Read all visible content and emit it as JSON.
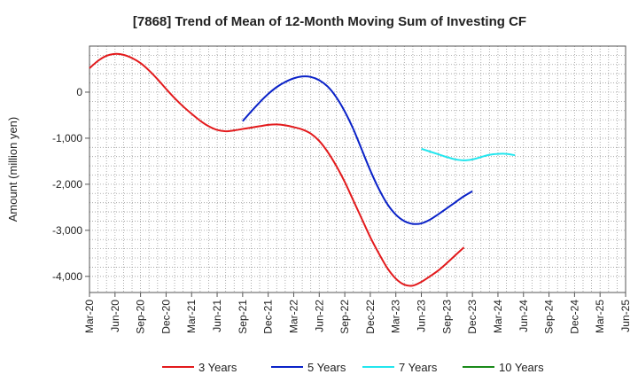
{
  "chart_data": {
    "type": "line",
    "title": "[7868]  Trend of Mean of 12-Month Moving Sum of Investing CF",
    "xlabel": "",
    "ylabel": "Amount (million yen)",
    "ylim": [
      -4350,
      1000
    ],
    "yticks": [
      0,
      -1000,
      -2000,
      -3000,
      -4000
    ],
    "ytick_labels": [
      "0",
      "-1,000",
      "-2,000",
      "-3,000",
      "-4,000"
    ],
    "xtick_labels": [
      "Mar-20",
      "Jun-20",
      "Sep-20",
      "Dec-20",
      "Mar-21",
      "Jun-21",
      "Sep-21",
      "Dec-21",
      "Mar-22",
      "Jun-22",
      "Sep-22",
      "Dec-22",
      "Mar-23",
      "Jun-23",
      "Sep-23",
      "Dec-23",
      "Mar-24",
      "Jun-24",
      "Sep-24",
      "Dec-24",
      "Mar-25",
      "Jun-25"
    ],
    "grid": true,
    "legend_position": "bottom",
    "series": [
      {
        "name": "3 Years",
        "color": "#e31a1c",
        "start_index": 0,
        "values": [
          520,
          680,
          790,
          830,
          810,
          740,
          630,
          470,
          280,
          70,
          -130,
          -310,
          -470,
          -620,
          -740,
          -820,
          -850,
          -830,
          -800,
          -770,
          -740,
          -710,
          -700,
          -720,
          -760,
          -810,
          -900,
          -1060,
          -1300,
          -1600,
          -1950,
          -2350,
          -2750,
          -3150,
          -3500,
          -3820,
          -4050,
          -4180,
          -4200,
          -4120,
          -4000,
          -3870,
          -3710,
          -3540,
          -3370
        ]
      },
      {
        "name": "5 Years",
        "color": "#0a22c8",
        "start_index": 18,
        "values": [
          -630,
          -420,
          -220,
          -40,
          110,
          220,
          300,
          340,
          330,
          260,
          120,
          -110,
          -420,
          -800,
          -1250,
          -1700,
          -2100,
          -2430,
          -2660,
          -2800,
          -2860,
          -2850,
          -2770,
          -2650,
          -2520,
          -2390,
          -2260,
          -2150
        ]
      },
      {
        "name": "7 Years",
        "color": "#22e6ee",
        "start_index": 39,
        "values": [
          -1230,
          -1290,
          -1350,
          -1410,
          -1460,
          -1480,
          -1460,
          -1410,
          -1360,
          -1340,
          -1340,
          -1370
        ]
      },
      {
        "name": "10 Years",
        "color": "#1a8a1a",
        "start_index": 0,
        "values": []
      }
    ]
  }
}
